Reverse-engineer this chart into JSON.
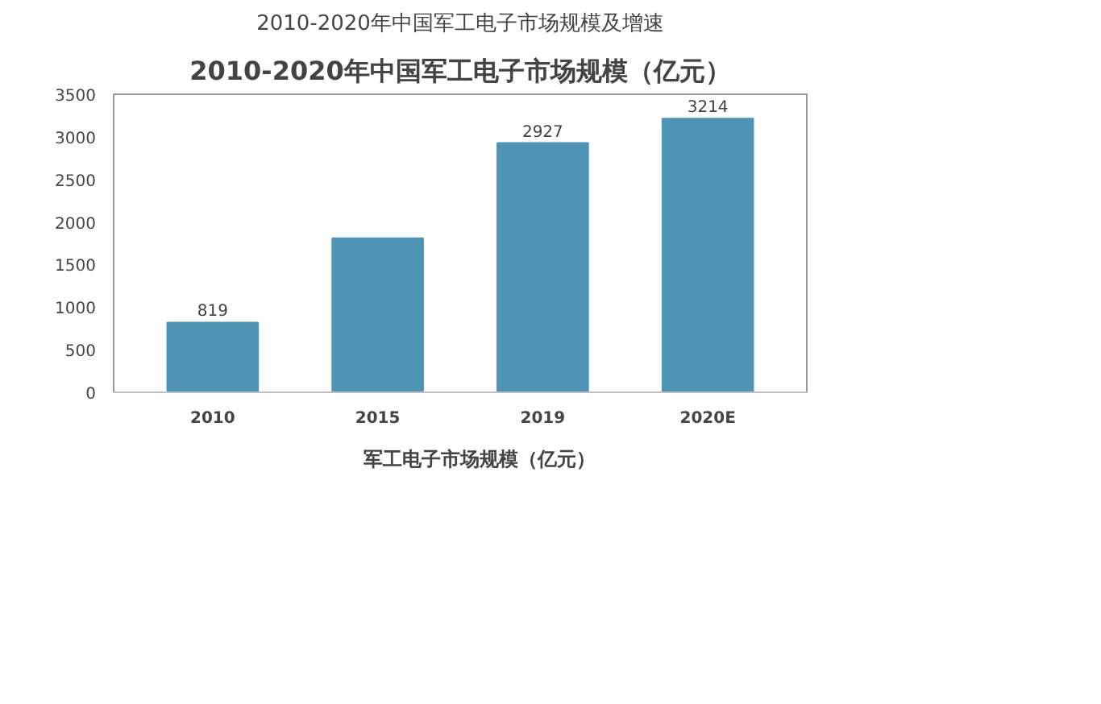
{
  "chart_data": {
    "type": "bar",
    "title": "2010-2020年中国军工电子市场规模及增速",
    "subtitle": "2010-2020年中国军工电子市场规模（亿元）",
    "categories": [
      "2010",
      "2015",
      "2019",
      "2020E"
    ],
    "series": [
      {
        "name": "军工电子市场规模（亿元）",
        "color": "#4f94b4",
        "values": [
          819,
          1810,
          2927,
          3214
        ],
        "value_labels": [
          "819",
          null,
          "2927",
          "3214"
        ]
      }
    ],
    "ylim": [
      0,
      3500
    ],
    "yticks": [
      0,
      500,
      1000,
      1500,
      2000,
      2500,
      3000,
      3500
    ],
    "grid": false,
    "legend": "bottom"
  }
}
